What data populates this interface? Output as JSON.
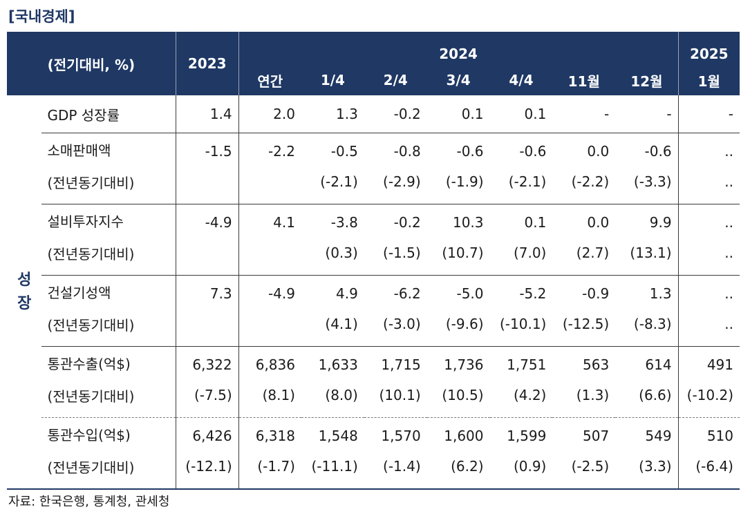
{
  "title": "[국내경제]",
  "header": {
    "unit": "(전기대비, %)",
    "y2023": "2023",
    "y2024": "2024",
    "y2025": "2025",
    "cols2024": [
      "연간",
      "1/4",
      "2/4",
      "3/4",
      "4/4",
      "11월",
      "12월"
    ],
    "col2025": "1월"
  },
  "section_label": [
    "성",
    "장"
  ],
  "rows": [
    {
      "label": "GDP 성장률",
      "values": [
        "1.4",
        "2.0",
        "1.3",
        "-0.2",
        "0.1",
        "0.1",
        "-",
        "-",
        "-"
      ]
    },
    {
      "label": "소매판매액",
      "values": [
        "-1.5",
        "-2.2",
        "-0.5",
        "-0.8",
        "-0.6",
        "-0.6",
        "0.0",
        "-0.6",
        ".."
      ],
      "sub_label": "(전년동기대비)",
      "sub_values": [
        "",
        "",
        "(-2.1)",
        "(-2.9)",
        "(-1.9)",
        "(-2.1)",
        "(-2.2)",
        "(-3.3)",
        ".."
      ]
    },
    {
      "label": "설비투자지수",
      "values": [
        "-4.9",
        "4.1",
        "-3.8",
        "-0.2",
        "10.3",
        "0.1",
        "0.0",
        "9.9",
        ".."
      ],
      "sub_label": "(전년동기대비)",
      "sub_values": [
        "",
        "",
        "(0.3)",
        "(-1.5)",
        "(10.7)",
        "(7.0)",
        "(2.7)",
        "(13.1)",
        ".."
      ]
    },
    {
      "label": "건설기성액",
      "values": [
        "7.3",
        "-4.9",
        "4.9",
        "-6.2",
        "-5.0",
        "-5.2",
        "-0.9",
        "1.3",
        ".."
      ],
      "sub_label": "(전년동기대비)",
      "sub_values": [
        "",
        "",
        "(4.1)",
        "(-3.0)",
        "(-9.6)",
        "(-10.1)",
        "(-12.5)",
        "(-8.3)",
        ".."
      ]
    },
    {
      "label": "통관수출(억$)",
      "values": [
        "6,322",
        "6,836",
        "1,633",
        "1,715",
        "1,736",
        "1,751",
        "563",
        "614",
        "491"
      ],
      "sub_label": "(전년동기대비)",
      "sub_values": [
        "(-7.5)",
        "(8.1)",
        "(8.0)",
        "(10.1)",
        "(10.5)",
        "(4.2)",
        "(1.3)",
        "(6.6)",
        "(-10.2)"
      ]
    },
    {
      "label": "통관수입(억$)",
      "values": [
        "6,426",
        "6,318",
        "1,548",
        "1,570",
        "1,600",
        "1,599",
        "507",
        "549",
        "510"
      ],
      "sub_label": "(전년동기대비)",
      "sub_values": [
        "(-12.1)",
        "(-1.7)",
        "(-11.1)",
        "(-1.4)",
        "(6.2)",
        "(0.9)",
        "(-2.5)",
        "(3.3)",
        "(-6.4)"
      ]
    }
  ],
  "source": "자료: 한국은행, 통계청, 관세청"
}
